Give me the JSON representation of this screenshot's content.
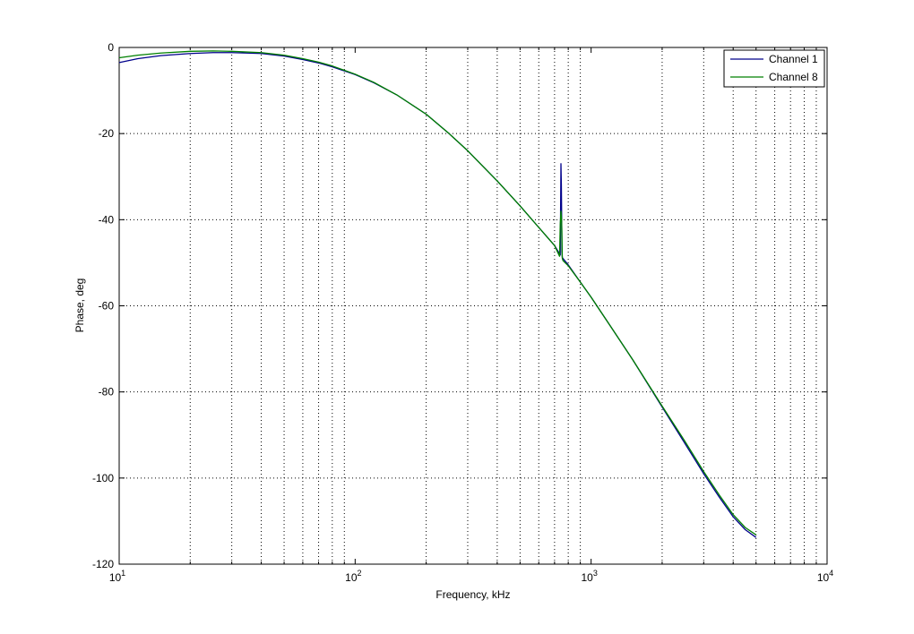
{
  "chart_data": {
    "type": "line",
    "title": "",
    "xlabel": "Frequency, kHz",
    "ylabel": "Phase, deg",
    "xscale": "log",
    "xlim": [
      10,
      10000
    ],
    "ylim": [
      -120,
      0
    ],
    "grid": true,
    "legend_position": "top-right",
    "x_tick_labels": [
      {
        "base": "10",
        "exp": "1"
      },
      {
        "base": "10",
        "exp": "2"
      },
      {
        "base": "10",
        "exp": "3"
      },
      {
        "base": "10",
        "exp": "4"
      }
    ],
    "y_ticks": [
      0,
      -20,
      -40,
      -60,
      -80,
      -100,
      -120
    ],
    "series": [
      {
        "name": "Channel 1",
        "color": "#00008b",
        "x": [
          10,
          12,
          15,
          20,
          25,
          30,
          40,
          50,
          60,
          70,
          80,
          100,
          120,
          150,
          200,
          250,
          300,
          400,
          500,
          600,
          700,
          740,
          745,
          748,
          750,
          752,
          755,
          760,
          800,
          900,
          1000,
          1200,
          1500,
          2000,
          2500,
          3000,
          3500,
          4000,
          4500,
          5000
        ],
        "values": [
          -3.5,
          -2.6,
          -1.9,
          -1.4,
          -1.2,
          -1.2,
          -1.4,
          -2.0,
          -2.8,
          -3.6,
          -4.5,
          -6.3,
          -8.2,
          -11.0,
          -15.5,
          -20.0,
          -24.0,
          -31.0,
          -36.8,
          -41.8,
          -46.0,
          -48.2,
          -27.0,
          -32.0,
          -38.5,
          -47.5,
          -48.8,
          -49.0,
          -50.5,
          -54.5,
          -58.0,
          -64.5,
          -72.5,
          -83.5,
          -92.0,
          -99.0,
          -104.5,
          -109.0,
          -112.0,
          -113.8
        ]
      },
      {
        "name": "Channel 8",
        "color": "#008000",
        "x": [
          10,
          12,
          15,
          20,
          25,
          30,
          40,
          50,
          60,
          70,
          80,
          100,
          120,
          150,
          200,
          250,
          300,
          400,
          500,
          600,
          700,
          735,
          740,
          745,
          750,
          755,
          760,
          800,
          900,
          1000,
          1200,
          1500,
          2000,
          2500,
          3000,
          3500,
          4000,
          4500,
          5000
        ],
        "values": [
          -2.4,
          -1.8,
          -1.3,
          -0.9,
          -0.8,
          -0.9,
          -1.2,
          -1.8,
          -2.6,
          -3.4,
          -4.3,
          -6.2,
          -8.1,
          -11.0,
          -15.5,
          -20.0,
          -24.0,
          -31.0,
          -36.8,
          -41.8,
          -46.0,
          -48.5,
          -41.0,
          -38.0,
          -40.0,
          -49.0,
          -49.5,
          -50.7,
          -54.5,
          -58.0,
          -64.5,
          -72.5,
          -83.3,
          -91.5,
          -98.5,
          -104.0,
          -108.5,
          -111.5,
          -113.2
        ]
      }
    ]
  }
}
